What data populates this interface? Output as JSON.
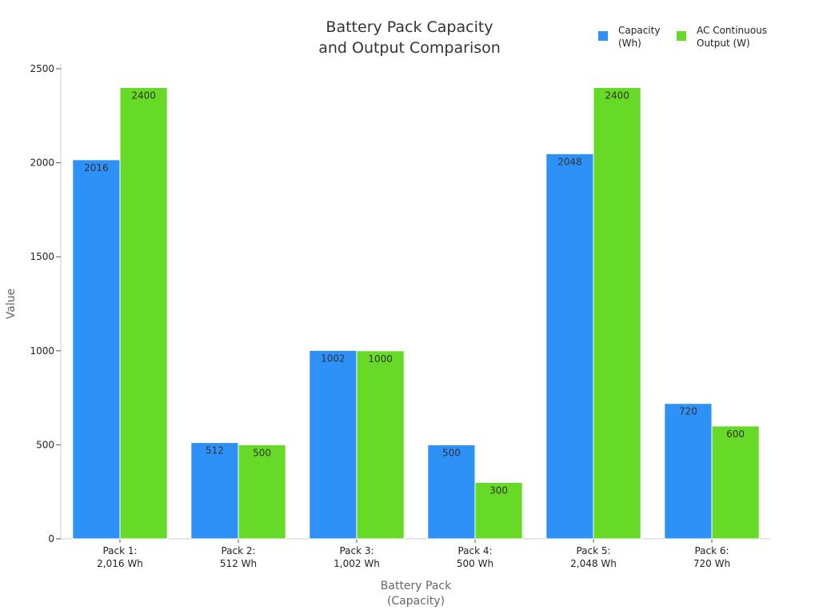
{
  "chart_data": {
    "type": "bar",
    "title": [
      "Battery Pack Capacity",
      "and Output Comparison"
    ],
    "xlabel": [
      "Battery Pack",
      "(Capacity)"
    ],
    "ylabel": "Value",
    "ylim": [
      0,
      2500
    ],
    "yticks": [
      0,
      500,
      1000,
      1500,
      2000,
      2500
    ],
    "grid": false,
    "legend_position": "top-right",
    "categories": [
      [
        "Pack 1:",
        "2,016 Wh"
      ],
      [
        "Pack 2:",
        "512 Wh"
      ],
      [
        "Pack 3:",
        "1,002 Wh"
      ],
      [
        "Pack 4:",
        "500 Wh"
      ],
      [
        "Pack 5:",
        "2,048 Wh"
      ],
      [
        "Pack 6:",
        "720 Wh"
      ]
    ],
    "series": [
      {
        "name": [
          "Capacity",
          "(Wh)"
        ],
        "color": "#2e91f7",
        "values": [
          2016,
          512,
          1002,
          500,
          2048,
          720
        ]
      },
      {
        "name": [
          "AC Continuous",
          "Output (W)"
        ],
        "color": "#66da26",
        "values": [
          2400,
          500,
          1000,
          300,
          2400,
          600
        ]
      }
    ]
  }
}
